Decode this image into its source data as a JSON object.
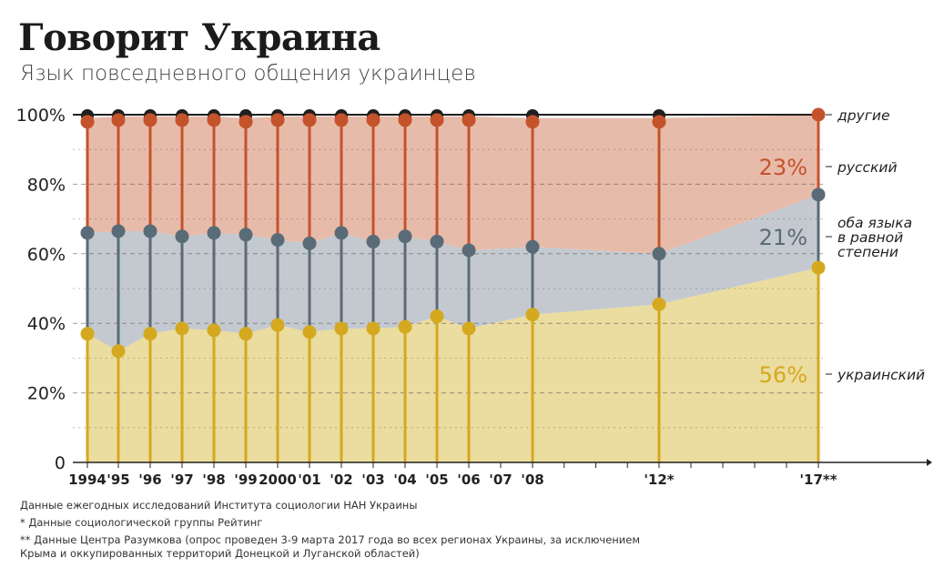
{
  "header": {
    "title": "Говорит Украина",
    "subtitle": "Язык повседневного общения украинцев"
  },
  "colors": {
    "ukrainian": "#d4a91f",
    "ukrainian_fill": "#ebdc9f",
    "both": "#5a6b78",
    "both_fill": "#c3c9ce",
    "russian": "#c4532c",
    "russian_fill": "#e7bba9",
    "other": "#1f1f1f"
  },
  "chart_data": {
    "type": "area",
    "title": "Говорит Украина",
    "subtitle": "Язык повседневного общения украинцев",
    "x": [
      1994,
      1995,
      1996,
      1997,
      1998,
      1999,
      2000,
      2001,
      2002,
      2003,
      2004,
      2005,
      2006,
      2008,
      2012,
      2017
    ],
    "x_axis_ticks": [
      {
        "year": 1994,
        "label": "1994"
      },
      {
        "year": 1995,
        "label": "'95"
      },
      {
        "year": 1996,
        "label": "'96"
      },
      {
        "year": 1997,
        "label": "'97"
      },
      {
        "year": 1998,
        "label": "'98"
      },
      {
        "year": 1999,
        "label": "'99"
      },
      {
        "year": 2000,
        "label": "2000"
      },
      {
        "year": 2001,
        "label": "'01"
      },
      {
        "year": 2002,
        "label": "'02"
      },
      {
        "year": 2003,
        "label": "'03"
      },
      {
        "year": 2004,
        "label": "'04"
      },
      {
        "year": 2005,
        "label": "'05"
      },
      {
        "year": 2006,
        "label": "'06"
      },
      {
        "year": 2007,
        "label": "'07"
      },
      {
        "year": 2008,
        "label": "'08"
      },
      {
        "year": 2012,
        "label": "'12*"
      },
      {
        "year": 2017,
        "label": "'17**"
      }
    ],
    "x_extra_ticks": [
      2009,
      2010,
      2011,
      2013,
      2014,
      2015,
      2016
    ],
    "y_ticks": [
      {
        "value": 0,
        "label": "0"
      },
      {
        "value": 20,
        "label": "20%"
      },
      {
        "value": 40,
        "label": "40%"
      },
      {
        "value": 60,
        "label": "60%"
      },
      {
        "value": 80,
        "label": "80%"
      },
      {
        "value": 100,
        "label": "100%"
      }
    ],
    "ylim": [
      0,
      100
    ],
    "grid": "dashed-horizontal",
    "series": [
      {
        "name": "украинский",
        "key": "ukrainian",
        "values": [
          37,
          32,
          37,
          38.5,
          38,
          37,
          39.5,
          37.5,
          38.5,
          38.5,
          39,
          42,
          38.5,
          42.5,
          45.5,
          56
        ]
      },
      {
        "name": "оба языка в равной степени",
        "key": "both",
        "label_lines": [
          "оба языка",
          "в равной",
          "степени"
        ],
        "values": [
          66,
          66.5,
          66.5,
          65,
          66,
          65.5,
          64,
          63,
          66,
          63.5,
          65,
          63.5,
          61,
          62,
          60,
          77
        ]
      },
      {
        "name": "русский",
        "key": "russian",
        "values": [
          99,
          99.5,
          99.5,
          99.5,
          99.5,
          99,
          99.5,
          99.5,
          99.5,
          99.5,
          99.5,
          99.5,
          99.5,
          99,
          99,
          100
        ]
      },
      {
        "name": "другие",
        "key": "other",
        "values": [
          100,
          100,
          100,
          100,
          100,
          100,
          100,
          100,
          100,
          100,
          100,
          100,
          100,
          100,
          100,
          100
        ]
      }
    ],
    "final_labels": [
      {
        "key": "russian",
        "text": "23%"
      },
      {
        "key": "both",
        "text": "21%"
      },
      {
        "key": "ukrainian",
        "text": "56%"
      }
    ]
  },
  "footnotes": [
    "Данные ежегодных исследований Института социологии НАН Украины",
    "* Данные социологической группы Рейтинг",
    "** Данные Центра Разумкова (опрос проведен 3-9 марта 2017 года во всех регионах Украины, за исключением",
    "Крыма и оккупированных территорий Донецкой и Луганской областей)"
  ]
}
